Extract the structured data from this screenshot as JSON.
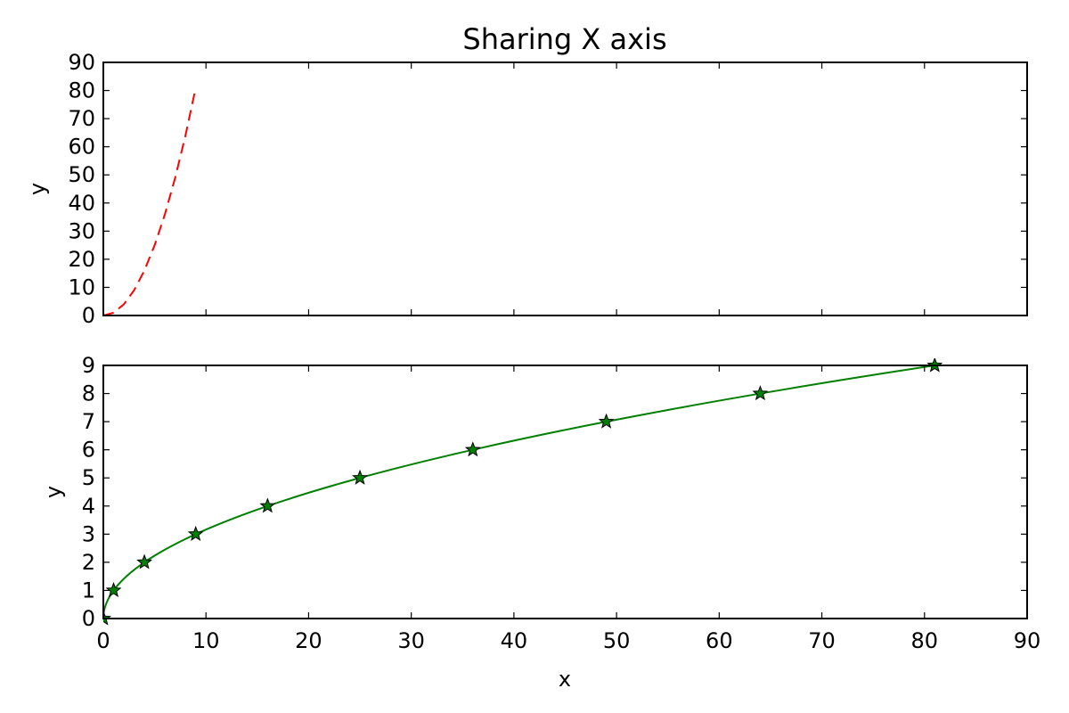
{
  "chart_data": [
    {
      "type": "line",
      "title": "Sharing X axis",
      "xlabel": "",
      "ylabel": "y",
      "xlim": [
        0,
        90
      ],
      "ylim": [
        0,
        90
      ],
      "xticks": [
        0,
        10,
        20,
        30,
        40,
        50,
        60,
        70,
        80,
        90
      ],
      "yticks": [
        0,
        10,
        20,
        30,
        40,
        50,
        60,
        70,
        80,
        90
      ],
      "show_xtick_labels": false,
      "grid": false,
      "series": [
        {
          "x": [
            0,
            1,
            2,
            3,
            4,
            5,
            6,
            7,
            8,
            9
          ],
          "y": [
            0,
            1,
            4,
            9,
            16,
            25,
            36,
            49,
            64,
            81
          ],
          "color": "#ff0000",
          "linestyle": "dashed",
          "marker": "none"
        }
      ]
    },
    {
      "type": "line",
      "title": "",
      "xlabel": "x",
      "ylabel": "y",
      "xlim": [
        0,
        90
      ],
      "ylim": [
        0,
        9
      ],
      "xticks": [
        0,
        10,
        20,
        30,
        40,
        50,
        60,
        70,
        80,
        90
      ],
      "yticks": [
        0,
        1,
        2,
        3,
        4,
        5,
        6,
        7,
        8,
        9
      ],
      "show_xtick_labels": true,
      "grid": false,
      "series": [
        {
          "x": [
            0,
            1,
            4,
            9,
            16,
            25,
            36,
            49,
            64,
            81
          ],
          "y": [
            0,
            1,
            2,
            3,
            4,
            5,
            6,
            7,
            8,
            9
          ],
          "color": "#008000",
          "linestyle": "solid",
          "marker": "star"
        }
      ]
    }
  ]
}
